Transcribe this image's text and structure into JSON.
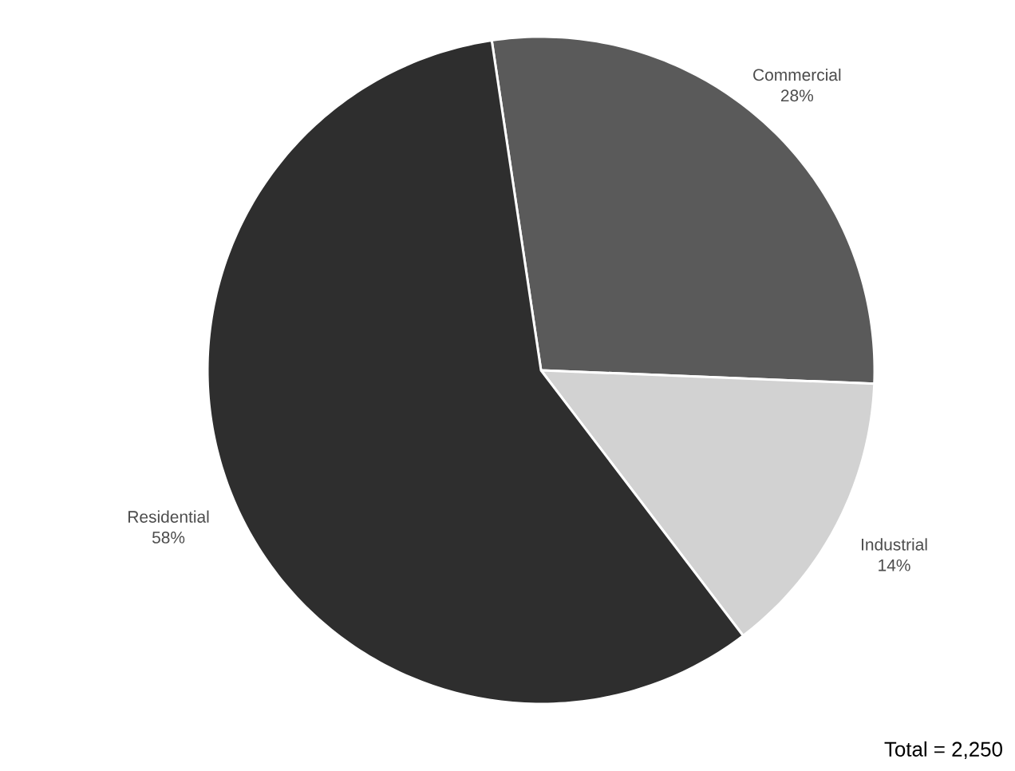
{
  "chart_data": {
    "type": "pie",
    "categories": [
      "Commercial",
      "Industrial",
      "Residential"
    ],
    "values": [
      28,
      14,
      58
    ],
    "value_labels": [
      "28%",
      "14%",
      "58%"
    ],
    "colors": [
      "#5a5a5a",
      "#d2d2d2",
      "#2e2e2e"
    ],
    "annotations": [
      "Total = 2,250"
    ]
  }
}
